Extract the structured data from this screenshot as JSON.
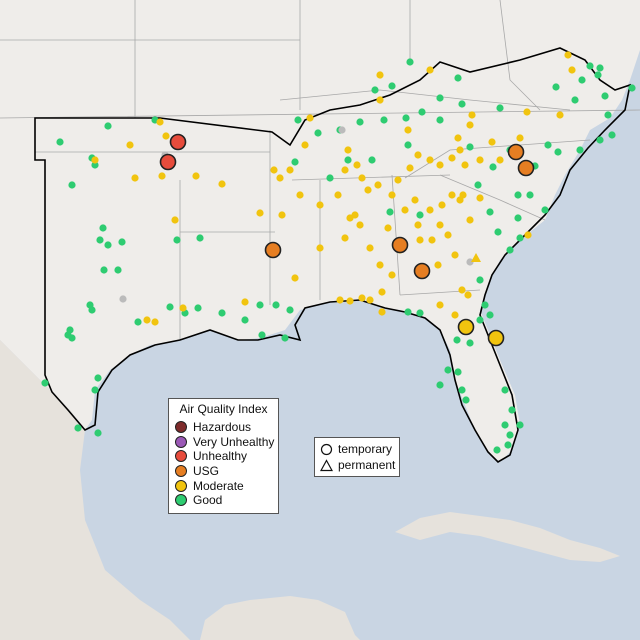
{
  "legend": {
    "title": "Air Quality Index",
    "categories": [
      {
        "label": "Hazardous",
        "color": "#7e2b2b"
      },
      {
        "label": "Very Unhealthy",
        "color": "#9b59b6"
      },
      {
        "label": "Unhealthy",
        "color": "#e74c3c"
      },
      {
        "label": "USG",
        "color": "#e67e22"
      },
      {
        "label": "Moderate",
        "color": "#f1c40f"
      },
      {
        "label": "Good",
        "color": "#2ecc71"
      }
    ]
  },
  "shape_legend": {
    "items": [
      {
        "label": "temporary",
        "shape": "circle-icon"
      },
      {
        "label": "permanent",
        "shape": "triangle-icon"
      }
    ]
  },
  "colors": {
    "water": "#c9d5e3",
    "land": "#efedea",
    "state_border": "#a8a8a8",
    "region_outline": "#000000",
    "no_data": "#bbbbbb"
  }
}
